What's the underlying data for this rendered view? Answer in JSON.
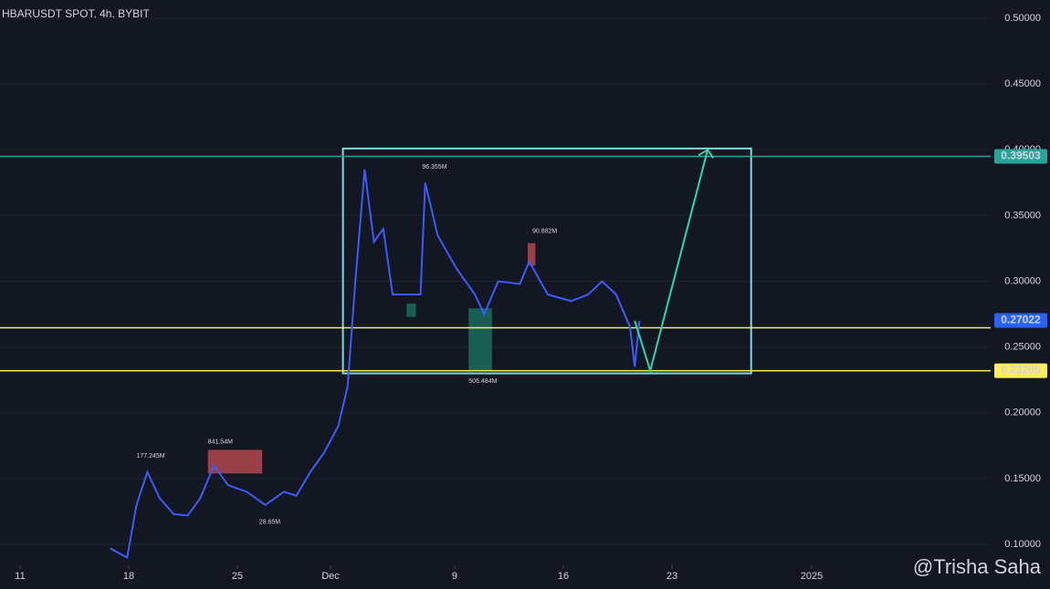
{
  "chart_data": {
    "type": "line",
    "title": "HBARUSDT SPOT, 4h, BYBIT",
    "color": "#3d5afe",
    "x": [
      5.8,
      6.9,
      7.5,
      8.2,
      9,
      9.9,
      10.8,
      11.6,
      12.5,
      13.4,
      14.6,
      15.8,
      17,
      17.8,
      18.7,
      19.6,
      20.5,
      21.1,
      21.6,
      22.2,
      22.8,
      23.4,
      24,
      24.9,
      25.8,
      26.1,
      26.9,
      28.1,
      29.3,
      29.9,
      30.8,
      32.2,
      32.8,
      34,
      35.5,
      36.6,
      37.5,
      38.4,
      39.3,
      39.6,
      39.9
    ],
    "values": [
      0.097,
      0.09,
      0.13,
      0.155,
      0.135,
      0.123,
      0.122,
      0.135,
      0.16,
      0.145,
      0.14,
      0.13,
      0.14,
      0.137,
      0.155,
      0.17,
      0.19,
      0.22,
      0.3,
      0.385,
      0.33,
      0.34,
      0.29,
      0.29,
      0.29,
      0.375,
      0.335,
      0.31,
      0.29,
      0.275,
      0.3,
      0.298,
      0.315,
      0.29,
      0.285,
      0.29,
      0.3,
      0.29,
      0.265,
      0.235,
      0.27
    ],
    "xlim": [
      -1.294,
      62.53
    ],
    "xticks": [
      {
        "value": 0,
        "label": "11"
      },
      {
        "value": 7,
        "label": "18"
      },
      {
        "value": 14,
        "label": "25"
      },
      {
        "value": 20,
        "label": "Dec"
      },
      {
        "value": 28,
        "label": "9"
      },
      {
        "value": 35,
        "label": "16"
      },
      {
        "value": 42,
        "label": "23"
      },
      {
        "value": 51,
        "label": "2025"
      }
    ],
    "ylim": [
      0.0841,
      0.5139
    ],
    "yticks": [
      {
        "value": 0.5,
        "label": "0.50000"
      },
      {
        "value": 0.45,
        "label": "0.45000"
      },
      {
        "value": 0.4,
        "label": "0.40000"
      },
      {
        "value": 0.35,
        "label": "0.35000"
      },
      {
        "value": 0.3,
        "label": "0.30000"
      },
      {
        "value": 0.25,
        "label": "0.25000"
      },
      {
        "value": 0.2,
        "label": "0.20000"
      },
      {
        "value": 0.15,
        "label": "0.15000"
      },
      {
        "value": 0.1,
        "label": "0.10000"
      }
    ],
    "levels": [
      {
        "value": 0.39503,
        "label": "0.39503",
        "color": "#26a69a"
      },
      {
        "value": 0.2647,
        "color": "#ffee58"
      },
      {
        "value": 0.23205,
        "label": "0.23205",
        "color": "#ffee58"
      }
    ],
    "last_price": {
      "value": 0.27022,
      "label": "0.27022",
      "color": "#2962ff"
    },
    "projection": {
      "color": "#2bd9a8",
      "x": [
        39.6,
        40.6,
        44.3
      ],
      "values": [
        0.27,
        0.232,
        0.4
      ]
    },
    "range_box": {
      "color": "#7fdbdb",
      "x": [
        20.8,
        47.1
      ],
      "values": [
        0.401,
        0.23
      ]
    },
    "zones": [
      {
        "color": "#b2474d",
        "x": [
          12.1,
          15.6
        ],
        "values": [
          0.1719,
          0.1539
        ]
      },
      {
        "color": "#b2474d",
        "x": [
          32.7,
          33.2
        ],
        "values": [
          0.329,
          0.312
        ]
      },
      {
        "color": "#1b6b5e",
        "x": [
          28.9,
          30.4
        ],
        "values": [
          0.2795,
          0.232
        ]
      },
      {
        "color": "#1b6b5e",
        "x": [
          24.9,
          25.5
        ],
        "values": [
          0.283,
          0.273
        ]
      }
    ],
    "annotations": [
      {
        "text": "177.245M",
        "x": 7.5,
        "y": 0.1672,
        "color": "#ef5350"
      },
      {
        "text": "841.54M",
        "x": 12.1,
        "y": 0.178,
        "color": "#ef5350"
      },
      {
        "text": "96.355M",
        "x": 25.9,
        "y": 0.387,
        "color": "#ef5350"
      },
      {
        "text": "90.882M",
        "x": 33,
        "y": 0.338,
        "color": "#ef5350"
      },
      {
        "text": "506.484M",
        "x": 28.9,
        "y": 0.224,
        "color": "#26a69a"
      },
      {
        "text": "28.65M",
        "x": 15.4,
        "y": 0.117,
        "color": "#26a69a"
      }
    ],
    "watermark": "@Trisha Saha"
  }
}
